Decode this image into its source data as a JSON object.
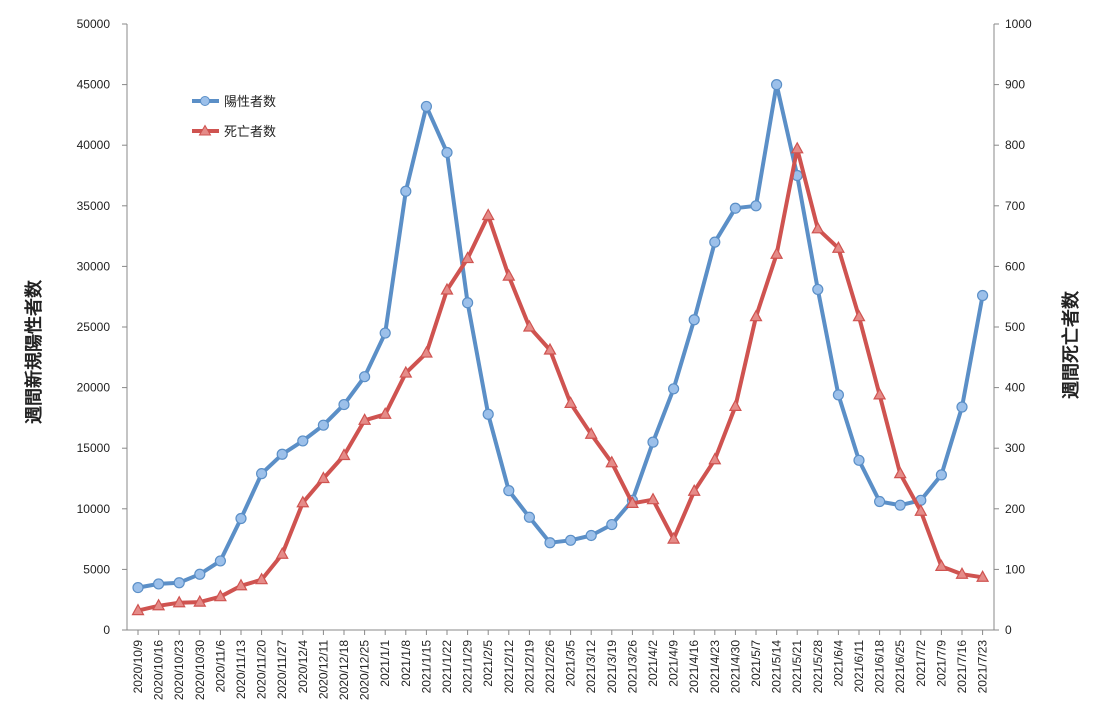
{
  "chart_data": {
    "type": "line",
    "title": "",
    "xlabel": "",
    "ylabel": "週間新規陽性者数",
    "y2label": "週間死亡者数",
    "ylim": [
      0,
      50000
    ],
    "y2lim": [
      0,
      1000
    ],
    "yticks": [
      "0",
      "5000",
      "10000",
      "15000",
      "20000",
      "25000",
      "30000",
      "35000",
      "40000",
      "45000",
      "50000"
    ],
    "y2ticks": [
      "0",
      "100",
      "200",
      "300",
      "400",
      "500",
      "600",
      "700",
      "800",
      "900",
      "1000"
    ],
    "grid": false,
    "legend": "top-left",
    "categories": [
      "2020/10/9",
      "2020/10/16",
      "2020/10/23",
      "2020/10/30",
      "2020/11/6",
      "2020/11/13",
      "2020/11/20",
      "2020/11/27",
      "2020/12/4",
      "2020/12/11",
      "2020/12/18",
      "2020/12/25",
      "2021/1/1",
      "2021/1/8",
      "2021/1/15",
      "2021/1/22",
      "2021/1/29",
      "2021/2/5",
      "2021/2/12",
      "2021/2/19",
      "2021/2/26",
      "2021/3/5",
      "2021/3/12",
      "2021/3/19",
      "2021/3/26",
      "2021/4/2",
      "2021/4/9",
      "2021/4/16",
      "2021/4/23",
      "2021/4/30",
      "2021/5/7",
      "2021/5/14",
      "2021/5/21",
      "2021/5/28",
      "2021/6/4",
      "2021/6/11",
      "2021/6/18",
      "2021/6/25",
      "2021/7/2",
      "2021/7/9",
      "2021/7/16",
      "2021/7/23"
    ],
    "series": [
      {
        "name": "陽性者数",
        "axis": "left",
        "color": "#5b8fc7",
        "marker": "circle",
        "values": [
          3500,
          3800,
          3900,
          4600,
          5700,
          9200,
          12900,
          14500,
          15600,
          16900,
          18600,
          20900,
          24500,
          36200,
          43200,
          39400,
          27000,
          17800,
          11500,
          9300,
          7200,
          7400,
          7800,
          8700,
          10700,
          15500,
          19900,
          25600,
          32000,
          34800,
          35000,
          45000,
          37500,
          28100,
          19400,
          14000,
          10600,
          10300,
          10700,
          12800,
          18400,
          27600
        ]
      },
      {
        "name": "死亡者数",
        "axis": "right",
        "color": "#cf5350",
        "marker": "triangle",
        "values": [
          32,
          40,
          45,
          46,
          55,
          73,
          83,
          125,
          210,
          250,
          288,
          346,
          356,
          424,
          457,
          561,
          613,
          684,
          584,
          500,
          462,
          374,
          323,
          276,
          209,
          215,
          150,
          229,
          281,
          369,
          517,
          620,
          794,
          662,
          630,
          517,
          388,
          258,
          196,
          105,
          92,
          87
        ]
      }
    ]
  }
}
